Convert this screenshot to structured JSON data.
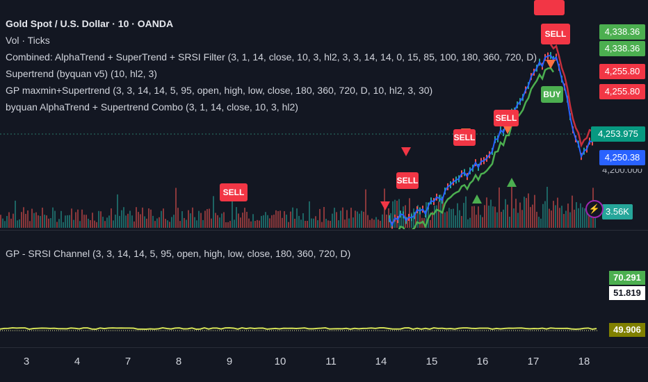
{
  "header": {
    "symbol_title": "Gold Spot / U.S. Dollar · 10 · OANDA",
    "vol": "Vol · Ticks",
    "indicators": [
      "Combined: AlphaTrend + SuperTrend + SRSI Filter (3, 1, 14, close, 10, 3, hl2, 3, 3, 14, 14, 0, 15, 85, 100, 180, 360, 720, D)",
      "Supertrend (byquan v5) (10, hl2, 3)",
      "GP maxmin+Supertrend (3, 3, 14, 14, 5, 95, open, high, low, close, 180, 360, 720, D, 10, hl2, 3, 30)",
      "byquan AlphaTrend + Supertrend Combo (3, 1, 14, close, 10, 3, hl2)"
    ]
  },
  "price_scale": {
    "tags": [
      {
        "label": "4,338.36",
        "color": "#4caf50"
      },
      {
        "label": "4,338.36",
        "color": "#4caf50"
      },
      {
        "label": "4,255.80",
        "color": "#f23645"
      },
      {
        "label": "4,255.80",
        "color": "#f23645"
      },
      {
        "label": "4,253.975",
        "color": "#089981"
      },
      {
        "label": "4,250.38",
        "color": "#2962ff"
      }
    ],
    "level_partial": "4,200.000",
    "volume_tag": "3.56K",
    "volume_tag_color": "#26a69a"
  },
  "signals": {
    "sell": "SELL",
    "buy": "BUY"
  },
  "oscillator": {
    "title": "GP - SRSI Channel (3, 3, 14, 14, 5, 95, open, high, low, close, 180, 360, 720, D)",
    "tags": [
      {
        "label": "70.291",
        "bg": "#4caf50",
        "fg": "#ffffff"
      },
      {
        "label": "51.819",
        "bg": "#ffffff",
        "fg": "#131722"
      },
      {
        "label": "49.906",
        "bg": "#808000",
        "fg": "#ffffff"
      }
    ]
  },
  "time_axis": {
    "labels": [
      "3",
      "4",
      "7",
      "8",
      "9",
      "10",
      "11",
      "14",
      "15",
      "16",
      "17",
      "18"
    ]
  },
  "colors": {
    "background": "#131722",
    "up": "#26a69a",
    "down": "#ef5350",
    "sell": "#f23645",
    "buy": "#4caf50",
    "supertrend_line": "#4caf50",
    "price_line": "#2962ff",
    "osc_line": "#d4e157"
  }
}
